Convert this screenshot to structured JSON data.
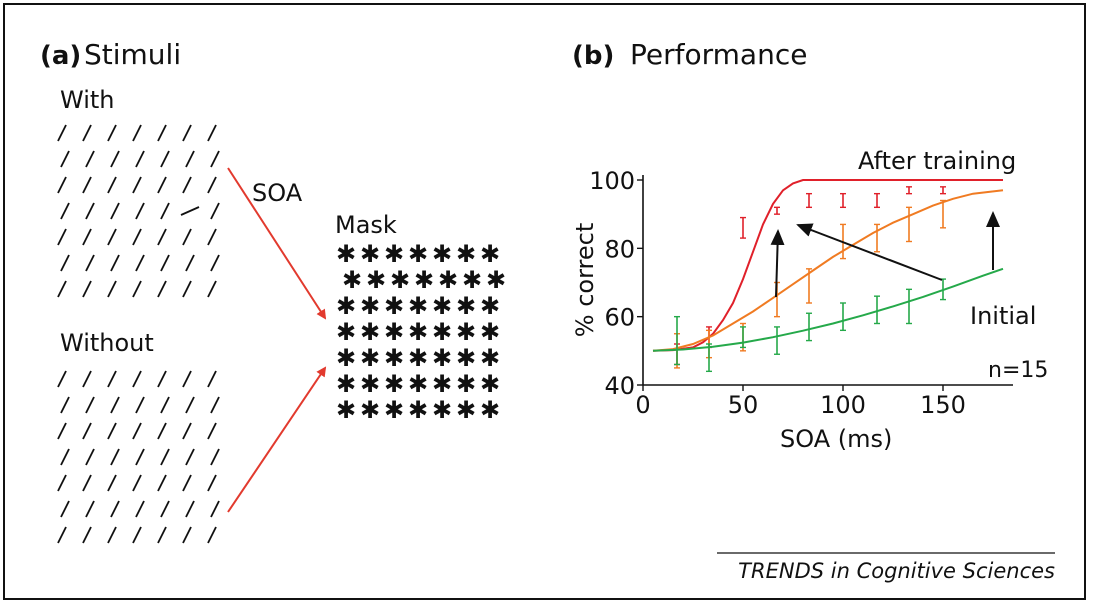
{
  "panel_a": {
    "letter": "(a)",
    "title": "Stimuli",
    "with_label": "With",
    "without_label": "Without",
    "soa_label": "SOA",
    "mask_label": "Mask",
    "mask_glyph": "✱",
    "line_color": "#111111",
    "arrow_color": "#e23a2e"
  },
  "panel_b": {
    "letter": "(b)",
    "title": "Performance",
    "annotation_after": "After training",
    "annotation_initial": "Initial",
    "annotation_n": "n=15",
    "xlabel": "SOA (ms)",
    "ylabel": "% correct",
    "xticks": [
      "0",
      "50",
      "100",
      "150"
    ],
    "yticks": [
      "40",
      "60",
      "80",
      "100"
    ]
  },
  "chart_data": {
    "type": "line",
    "xlabel": "SOA (ms)",
    "ylabel": "% correct",
    "xlim": [
      0,
      185
    ],
    "ylim": [
      40,
      100
    ],
    "grid": false,
    "series": [
      {
        "color": "#e0202a",
        "curve_x": [
          5,
          15,
          25,
          30,
          35,
          40,
          45,
          50,
          55,
          60,
          65,
          70,
          75,
          80,
          85,
          100,
          120,
          140,
          160,
          180
        ],
        "curve_y": [
          50,
          50.2,
          51,
          52.5,
          55,
          59,
          64,
          71,
          79,
          87,
          93,
          97,
          99,
          100,
          100,
          100,
          100,
          100,
          100,
          100
        ],
        "points_x": [
          17,
          33,
          50,
          67,
          83,
          100,
          117,
          133,
          150
        ],
        "points_y": [
          49,
          54,
          86,
          91,
          94,
          94,
          94,
          97,
          97
        ],
        "err": [
          3,
          3,
          3,
          1,
          2,
          2,
          2,
          1,
          1
        ]
      },
      {
        "color": "#f07b22",
        "curve_x": [
          5,
          15,
          25,
          35,
          45,
          55,
          65,
          75,
          85,
          95,
          105,
          115,
          125,
          135,
          145,
          155,
          165,
          180
        ],
        "curve_y": [
          50,
          50.5,
          52,
          54.5,
          58,
          61.5,
          65.5,
          69.5,
          73.5,
          77.5,
          81,
          84.5,
          87.5,
          90,
          92.5,
          94.5,
          96,
          97
        ],
        "points_x": [
          17,
          33,
          50,
          67,
          83,
          100,
          117,
          133,
          150
        ],
        "points_y": [
          50,
          52,
          54,
          65,
          69,
          82,
          83,
          87,
          90
        ],
        "err": [
          5,
          4,
          4,
          5,
          5,
          5,
          4,
          5,
          4
        ]
      },
      {
        "color": "#25a94a",
        "curve_x": [
          5,
          20,
          35,
          50,
          65,
          80,
          95,
          110,
          125,
          140,
          155,
          170,
          180
        ],
        "curve_y": [
          50,
          50.4,
          51.2,
          52.4,
          54,
          55.9,
          58,
          60.4,
          63,
          65.8,
          68.8,
          72,
          74
        ],
        "points_x": [
          17,
          33,
          50,
          67,
          83,
          100,
          117,
          133,
          150
        ],
        "points_y": [
          53,
          48,
          54,
          53,
          57,
          60,
          62,
          63,
          68
        ],
        "err": [
          7,
          4,
          3,
          4,
          4,
          4,
          4,
          5,
          3
        ]
      }
    ]
  },
  "footer": {
    "journal": "TRENDS in Cognitive Sciences"
  }
}
